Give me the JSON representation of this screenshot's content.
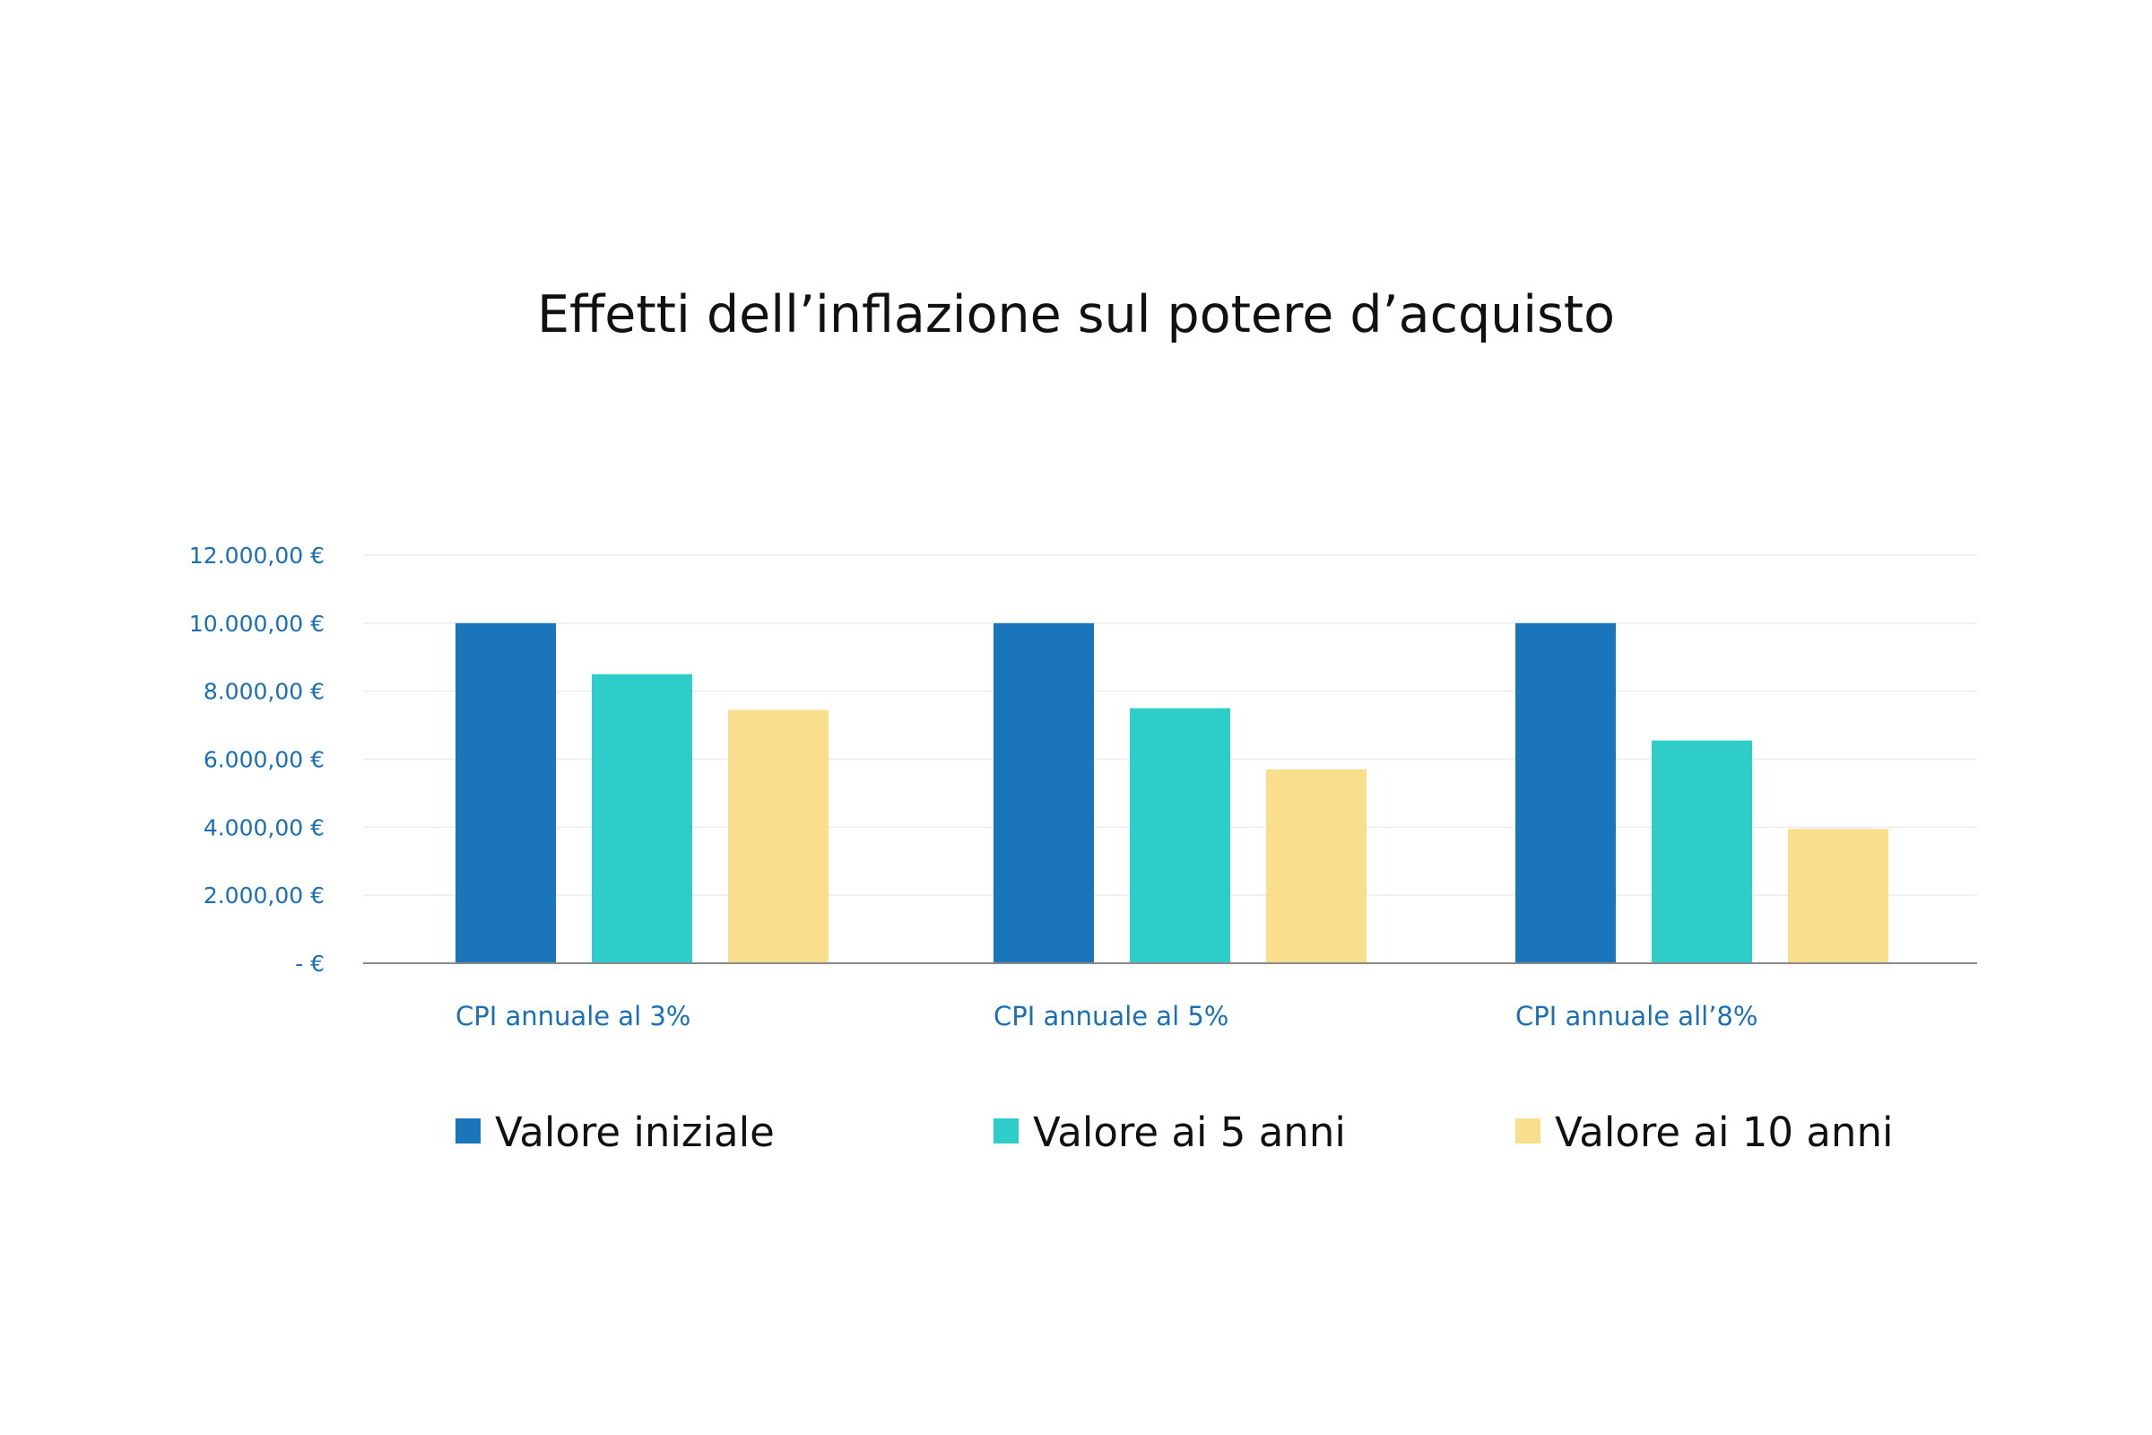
{
  "chart_data": {
    "type": "bar",
    "title": "Effetti dell’inflazione sul potere d’acquisto",
    "categories": [
      "CPI annuale al 3%",
      "CPI annuale al 5%",
      "CPI annuale all’8%"
    ],
    "series": [
      {
        "name": "Valore iniziale",
        "color": "#1b75bb",
        "values": [
          10000,
          10000,
          10000
        ]
      },
      {
        "name": "Valore ai 5 anni",
        "color": "#2ecdca",
        "values": [
          8500,
          7500,
          6550
        ]
      },
      {
        "name": "Valore ai 10 anni",
        "color": "#f9de8e",
        "values": [
          7450,
          5700,
          3950
        ]
      }
    ],
    "ylim": [
      0,
      12000
    ],
    "y_ticks": [
      {
        "value": 0,
        "label": "-     €"
      },
      {
        "value": 2000,
        "label": "2.000,00 €"
      },
      {
        "value": 4000,
        "label": "4.000,00 €"
      },
      {
        "value": 6000,
        "label": "6.000,00 €"
      },
      {
        "value": 8000,
        "label": "8.000,00 €"
      },
      {
        "value": 10000,
        "label": "10.000,00 €"
      },
      {
        "value": 12000,
        "label": "12.000,00 €"
      }
    ],
    "grid": true,
    "legend": "bottom",
    "axis_color": "#1a6fb5"
  }
}
